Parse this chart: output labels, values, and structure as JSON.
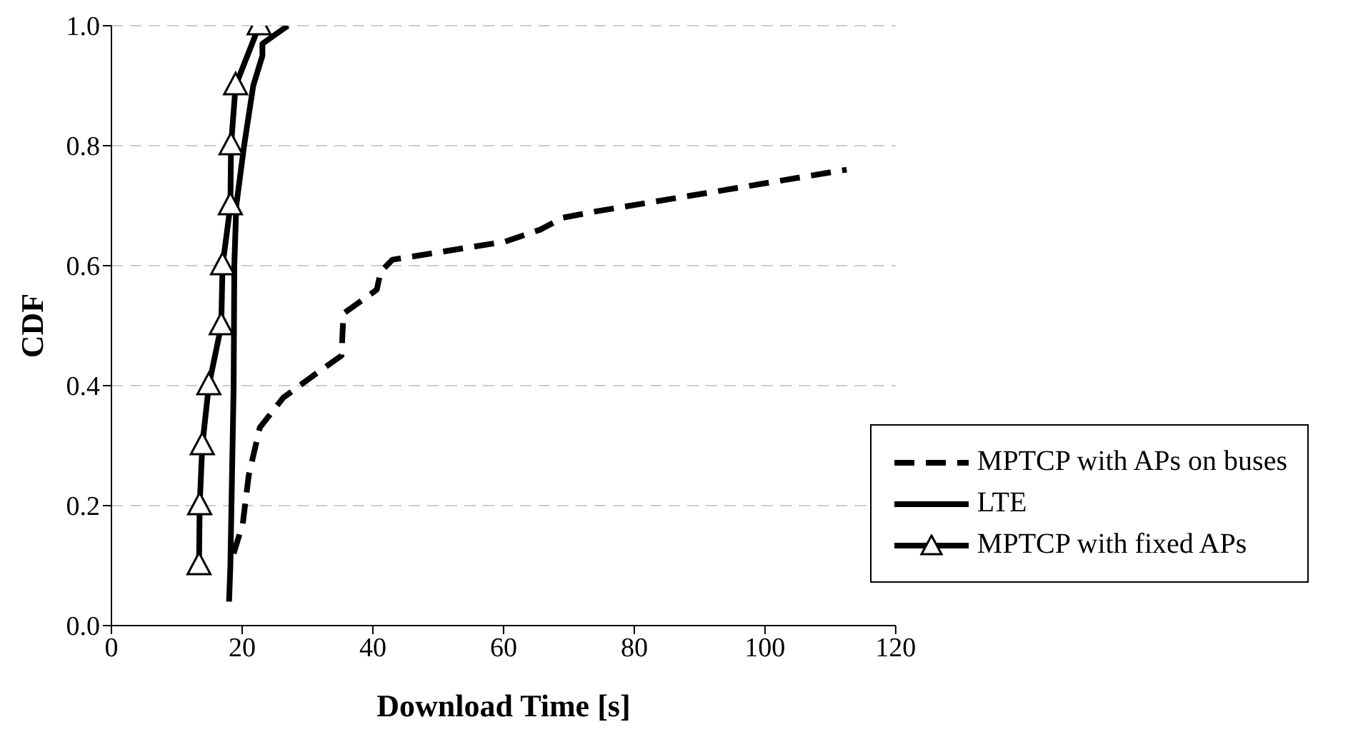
{
  "chart_data": {
    "type": "line",
    "xlabel": "Download Time [s]",
    "ylabel": "CDF",
    "xlim": [
      0,
      120
    ],
    "xticks": [
      0,
      20,
      40,
      60,
      80,
      100,
      120
    ],
    "ylim": [
      0,
      1
    ],
    "yticks": [
      {
        "value": 0,
        "label": "0.0"
      },
      {
        "value": 0.2,
        "label": "0.2"
      },
      {
        "value": 0.4,
        "label": "0.4"
      },
      {
        "value": 0.6,
        "label": "0.6"
      },
      {
        "value": 0.8,
        "label": "0.8"
      },
      {
        "value": 1,
        "label": "1.0"
      }
    ],
    "grid": "y",
    "legend": "bottom right",
    "series": [
      {
        "name": "MPTCP with APs on buses",
        "color": "#000000",
        "line_style": "dashed",
        "marker": "none",
        "x": [
          18.7,
          20.1,
          21,
          22.7,
          26.3,
          31.3,
          35.2,
          35.5,
          40.6,
          41.2,
          43,
          60.2,
          65.6,
          69.1,
          73.9,
          112.5
        ],
        "values": [
          0.12,
          0.17,
          0.25,
          0.33,
          0.38,
          0.42,
          0.45,
          0.52,
          0.56,
          0.59,
          0.61,
          0.64,
          0.66,
          0.68,
          0.69,
          0.76
        ]
      },
      {
        "name": "LTE",
        "color": "#000000",
        "line_style": "solid",
        "marker": "none",
        "x": [
          18,
          18.2,
          18.7,
          18.8,
          19.1,
          19.7,
          20.3,
          21.7,
          23.1,
          23.1,
          24.4,
          27
        ],
        "values": [
          0.04,
          0.1,
          0.4,
          0.6,
          0.7,
          0.75,
          0.8,
          0.9,
          0.95,
          0.97,
          0.98,
          1
        ]
      },
      {
        "name": "MPTCP with fixed APs",
        "color": "#000000",
        "line_style": "solid",
        "marker": "triangle",
        "x": [
          13.4,
          13.5,
          13.9,
          14.9,
          16.8,
          17,
          18.2,
          18.3,
          19,
          22.6
        ],
        "values": [
          0.1,
          0.2,
          0.3,
          0.4,
          0.5,
          0.6,
          0.7,
          0.8,
          0.9,
          1
        ]
      }
    ]
  }
}
